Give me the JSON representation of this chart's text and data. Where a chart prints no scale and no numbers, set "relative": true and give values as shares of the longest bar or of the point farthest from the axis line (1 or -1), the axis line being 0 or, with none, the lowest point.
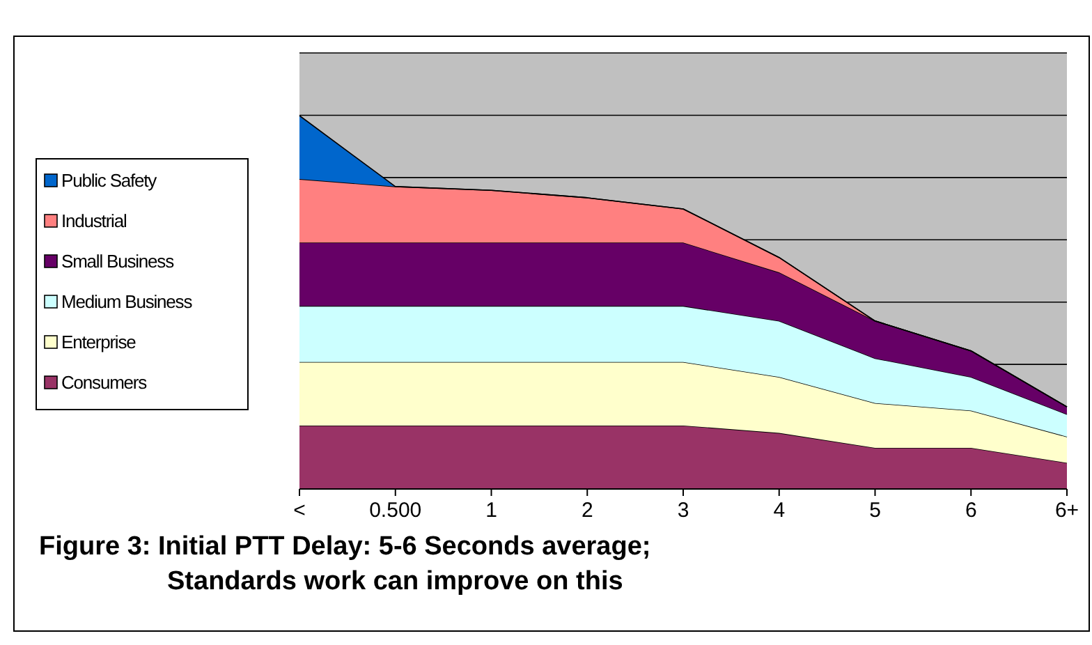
{
  "chart_data": {
    "type": "area",
    "title": "Figure 3:  Initial PTT Delay: 5-6 Seconds average;\nStandards work can improve on this",
    "categories": [
      "<",
      "0.500",
      "1",
      "2",
      "3",
      "4",
      "5",
      "6",
      "6+"
    ],
    "relative": true,
    "stacked": true,
    "grid": "y",
    "legend": "left",
    "series": [
      {
        "name": "Consumers",
        "color": "#993366",
        "values": [
          0.17,
          0.17,
          0.17,
          0.17,
          0.17,
          0.15,
          0.11,
          0.11,
          0.07
        ]
      },
      {
        "name": "Enterprise",
        "color": "#ffffcc",
        "values": [
          0.17,
          0.17,
          0.17,
          0.17,
          0.17,
          0.15,
          0.12,
          0.1,
          0.07
        ]
      },
      {
        "name": "Medium Business",
        "color": "#ccffff",
        "values": [
          0.15,
          0.15,
          0.15,
          0.15,
          0.15,
          0.15,
          0.12,
          0.09,
          0.06
        ]
      },
      {
        "name": "Small Business",
        "color": "#660066",
        "values": [
          0.17,
          0.17,
          0.17,
          0.17,
          0.17,
          0.13,
          0.1,
          0.07,
          0.02
        ]
      },
      {
        "name": "Industrial",
        "color": "#ff8080",
        "values": [
          0.17,
          0.15,
          0.14,
          0.12,
          0.09,
          0.04,
          0,
          0,
          0
        ]
      },
      {
        "name": "Public Safety",
        "color": "#0066cc",
        "values": [
          0.17,
          0,
          0,
          0,
          0,
          0,
          0,
          0,
          0
        ]
      }
    ]
  }
}
